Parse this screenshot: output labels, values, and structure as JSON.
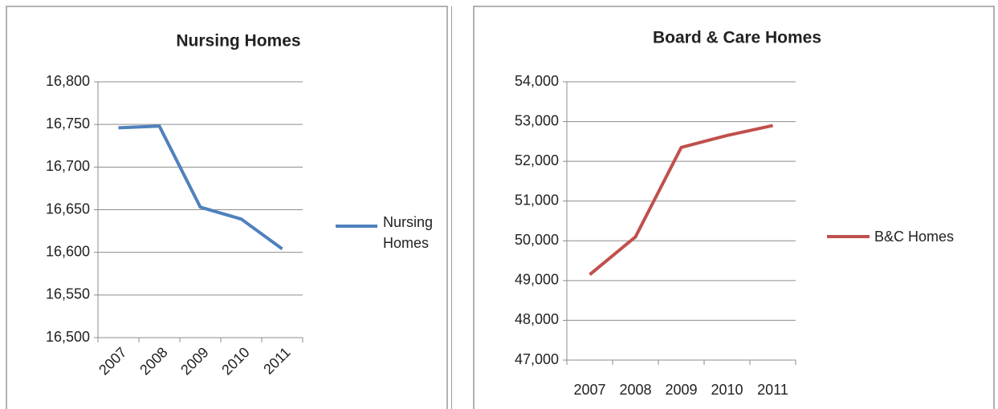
{
  "chart_data": [
    {
      "type": "line",
      "title": "Nursing Homes",
      "categories": [
        "2007",
        "2008",
        "2009",
        "2010",
        "2011"
      ],
      "series": [
        {
          "name": "Nursing Homes",
          "color": "#4f81bd",
          "values": [
            16746,
            16748,
            16653,
            16639,
            16604
          ]
        }
      ],
      "ylim": [
        16500,
        16800
      ],
      "yticks": [
        {
          "value": 16500,
          "label": "16,500"
        },
        {
          "value": 16550,
          "label": "16,550"
        },
        {
          "value": 16600,
          "label": "16,600"
        },
        {
          "value": 16650,
          "label": "16,650"
        },
        {
          "value": 16700,
          "label": "16,700"
        },
        {
          "value": 16750,
          "label": "16,750"
        },
        {
          "value": 16800,
          "label": "16,800"
        }
      ],
      "grid": true,
      "legend": "right"
    },
    {
      "type": "line",
      "title": "Board & Care Homes",
      "categories": [
        "2007",
        "2008",
        "2009",
        "2010",
        "2011"
      ],
      "series": [
        {
          "name": "B&C Homes",
          "color": "#c0504d",
          "values": [
            49150,
            50100,
            52350,
            52650,
            52900
          ]
        }
      ],
      "ylim": [
        47000,
        54000
      ],
      "yticks": [
        {
          "value": 47000,
          "label": "47,000"
        },
        {
          "value": 48000,
          "label": "48,000"
        },
        {
          "value": 49000,
          "label": "49,000"
        },
        {
          "value": 50000,
          "label": "50,000"
        },
        {
          "value": 51000,
          "label": "51,000"
        },
        {
          "value": 52000,
          "label": "52,000"
        },
        {
          "value": 53000,
          "label": "53,000"
        },
        {
          "value": 54000,
          "label": "54,000"
        }
      ],
      "grid": true,
      "legend": "right"
    }
  ]
}
